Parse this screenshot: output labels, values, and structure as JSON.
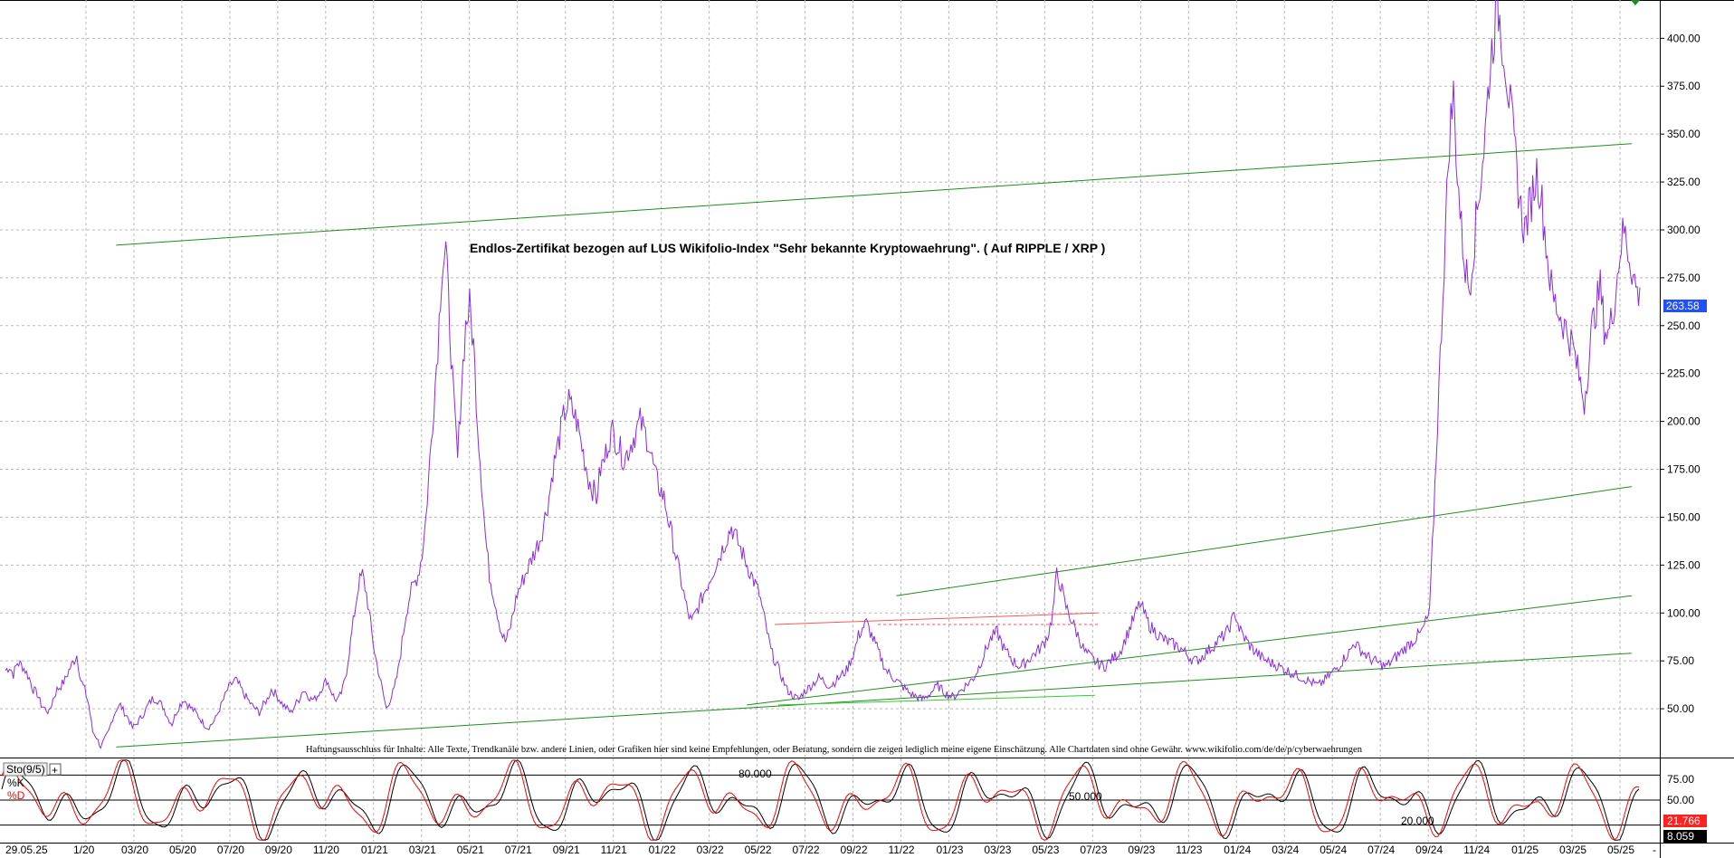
{
  "chart_data": [
    {
      "type": "line",
      "title": "Endlos-Zertifikat bezogen auf LUS Wikifolio-Index \"Sehr bekannte Kryptowaehrung\". ( Auf RIPPLE / XRP )",
      "disclaimer": "Haftungsausschluss für Inhalte: Alle Texte, Trendkanäle bzw. andere Linien, oder Grafiken hier sind keine Empfehlungen, oder Beratung, sondern die zeigen lediglich meine eigene Einschätzung. Alle Chartdaten sind ohne Gewähr.  www.wikifolio.com/de/de/p/cyberwaehrungen",
      "x_ticks": [
        "29.05.25",
        "1/20",
        "03/20",
        "05/20",
        "07/20",
        "09/20",
        "11/20",
        "01/21",
        "03/21",
        "05/21",
        "07/21",
        "09/21",
        "11/21",
        "01/22",
        "03/22",
        "05/22",
        "07/22",
        "09/22",
        "11/22",
        "01/23",
        "03/23",
        "05/23",
        "07/23",
        "09/23",
        "11/23",
        "01/24",
        "03/24",
        "05/24",
        "07/24",
        "09/24",
        "11/24",
        "01/25",
        "03/25",
        "05/25"
      ],
      "y_ticks": [
        "400.00",
        "375.00",
        "350.00",
        "325.00",
        "300.00",
        "275.00",
        "250.00",
        "225.00",
        "200.00",
        "175.00",
        "150.00",
        "125.00",
        "100.00",
        "75.00",
        "50.00"
      ],
      "ylim": [
        25,
        420
      ],
      "grid": true,
      "last_value": "263.58",
      "colors": {
        "price": "#8a2be2",
        "trend": "#1e8c1e",
        "resistance": "#ff5555",
        "last_label_bg": "#1f4fff"
      },
      "series": [
        {
          "values": [
            70,
            72,
            68,
            74,
            73,
            70,
            66,
            60,
            58,
            52,
            50,
            48,
            55,
            60,
            62,
            65,
            70,
            74,
            78,
            65,
            60,
            52,
            38,
            35,
            30,
            34,
            38,
            45,
            50,
            52,
            48,
            45,
            40,
            42,
            45,
            48,
            52,
            55,
            55,
            53,
            50,
            45,
            42,
            48,
            52,
            55,
            52,
            50,
            48,
            45,
            42,
            40,
            42,
            45,
            50,
            55,
            60,
            63,
            65,
            62,
            58,
            55,
            52,
            50,
            48,
            52,
            55,
            60,
            58,
            55,
            52,
            50,
            48,
            52,
            55,
            60,
            58,
            55,
            55,
            58,
            62,
            65,
            60,
            55,
            55,
            60,
            70,
            85,
            100,
            115,
            120,
            110,
            95,
            80,
            70,
            60,
            50,
            55,
            60,
            70,
            85,
            100,
            110,
            115,
            120,
            130,
            150,
            180,
            210,
            240,
            280,
            290,
            250,
            210,
            180,
            220,
            250,
            260,
            240,
            200,
            170,
            140,
            120,
            110,
            100,
            90,
            85,
            90,
            100,
            110,
            115,
            120,
            125,
            130,
            135,
            140,
            150,
            160,
            175,
            185,
            195,
            205,
            210,
            205,
            200,
            190,
            180,
            170,
            165,
            160,
            175,
            180,
            190,
            195,
            190,
            185,
            180,
            185,
            190,
            195,
            200,
            195,
            190,
            180,
            170,
            165,
            160,
            150,
            140,
            130,
            120,
            110,
            100,
            95,
            100,
            105,
            110,
            115,
            120,
            125,
            130,
            135,
            140,
            145,
            140,
            135,
            130,
            125,
            120,
            115,
            110,
            100,
            90,
            80,
            75,
            70,
            65,
            60,
            58,
            56,
            55,
            58,
            60,
            62,
            64,
            66,
            65,
            63,
            62,
            64,
            66,
            68,
            70,
            75,
            80,
            88,
            92,
            95,
            90,
            85,
            80,
            75,
            70,
            68,
            66,
            64,
            62,
            60,
            58,
            57,
            56,
            55,
            56,
            58,
            60,
            62,
            60,
            58,
            57,
            56,
            58,
            60,
            62,
            64,
            66,
            70,
            75,
            80,
            85,
            88,
            90,
            85,
            80,
            78,
            75,
            73,
            72,
            74,
            76,
            78,
            80,
            82,
            85,
            90,
            100,
            120,
            115,
            105,
            100,
            95,
            90,
            85,
            80,
            78,
            76,
            74,
            73,
            72,
            74,
            76,
            78,
            80,
            85,
            90,
            95,
            100,
            105,
            100,
            95,
            92,
            90,
            88,
            86,
            85,
            84,
            83,
            82,
            80,
            78,
            76,
            75,
            76,
            78,
            80,
            82,
            84,
            86,
            88,
            90,
            95,
            100,
            92,
            88,
            85,
            82,
            80,
            78,
            76,
            75,
            74,
            73,
            72,
            71,
            70,
            69,
            68,
            67,
            66,
            65,
            64,
            63,
            62,
            64,
            66,
            68,
            70,
            72,
            75,
            78,
            80,
            85,
            82,
            80,
            78,
            76,
            75,
            74,
            73,
            72,
            74,
            76,
            78,
            80,
            82,
            84,
            86,
            88,
            90,
            95,
            100,
            150,
            200,
            250,
            300,
            350,
            370,
            330,
            300,
            280,
            270,
            290,
            310,
            330,
            350,
            380,
            400,
            420,
            405,
            390,
            370,
            350,
            330,
            310,
            300,
            310,
            320,
            330,
            320,
            300,
            280,
            265,
            260,
            255,
            250,
            245,
            240,
            230,
            220,
            210,
            230,
            250,
            260,
            270,
            250,
            245,
            255,
            270,
            290,
            300,
            290,
            280,
            270,
            263.58
          ]
        }
      ],
      "trendlines": [
        {
          "name": "upper-channel",
          "x0": 0.07,
          "y0": 292,
          "x1": 0.96,
          "y1": 345
        },
        {
          "name": "mid-channel",
          "x0": 0.54,
          "y0": 109,
          "x1": 0.96,
          "y1": 166
        },
        {
          "name": "lower-channel-1",
          "x0": 0.45,
          "y0": 52,
          "x1": 0.96,
          "y1": 109
        },
        {
          "name": "lower-channel-2",
          "x0": 0.07,
          "y0": 30,
          "x1": 0.96,
          "y1": 79
        }
      ]
    },
    {
      "type": "line",
      "label": "Sto(9/5)",
      "legend": [
        "%K",
        "%D"
      ],
      "levels": [
        "80.000",
        "50.000",
        "20.000"
      ],
      "y_ticks": [
        "75.00",
        "50.00"
      ],
      "last_k": "21.766",
      "last_d": "8.059",
      "ylim": [
        0,
        100
      ],
      "colors": {
        "k": "#000000",
        "d": "#ff0000",
        "k_label_bg": "#ff2020",
        "d_label_bg": "#000000"
      }
    }
  ]
}
